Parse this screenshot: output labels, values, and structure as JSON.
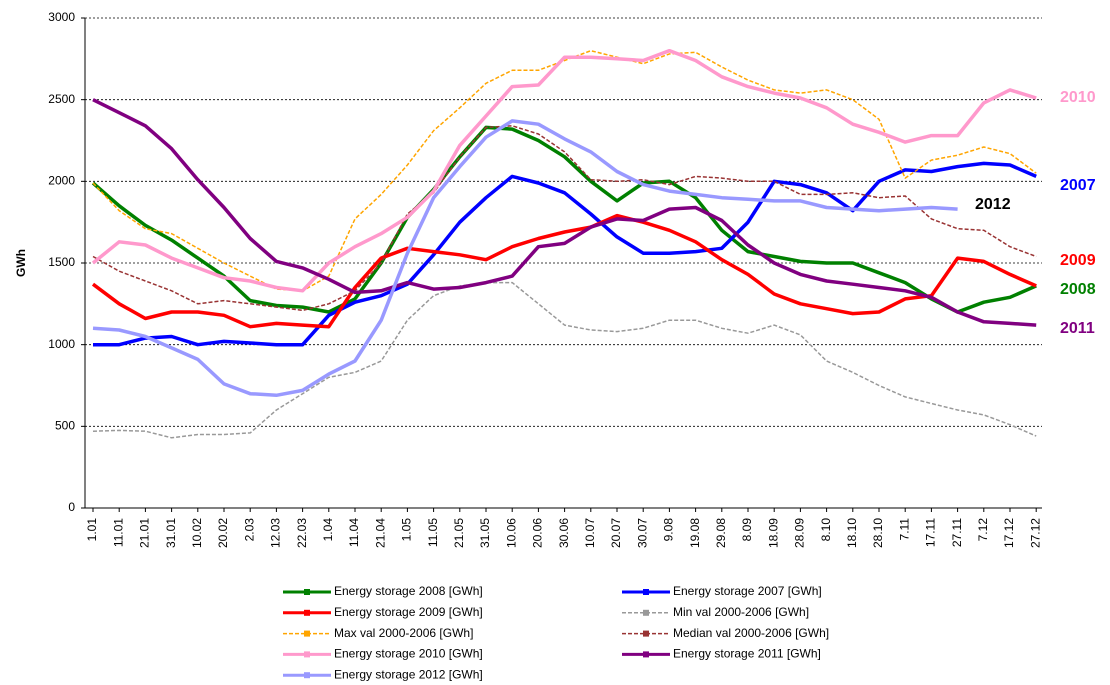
{
  "chart_data": {
    "type": "line",
    "y_label": "GWh",
    "categories": [
      "1.01",
      "11.01",
      "21.01",
      "31.01",
      "10.02",
      "20.02",
      "2.03",
      "12.03",
      "22.03",
      "1.04",
      "11.04",
      "21.04",
      "1.05",
      "11.05",
      "21.05",
      "31.05",
      "10.06",
      "20.06",
      "30.06",
      "10.07",
      "20.07",
      "30.07",
      "9.08",
      "19.08",
      "29.08",
      "8.09",
      "18.09",
      "28.09",
      "8.10",
      "18.10",
      "28.10",
      "7.11",
      "17.11",
      "27.11",
      "7.12",
      "17.12",
      "27.12"
    ],
    "ylim": [
      0,
      3000
    ],
    "yticks": [
      0,
      500,
      1000,
      1500,
      2000,
      2500,
      3000
    ],
    "grid": true,
    "series": [
      {
        "name": "Energy storage 2008 [GWh]",
        "color": "#008000",
        "style": "solid",
        "values": [
          1990,
          1850,
          1730,
          1640,
          1530,
          1420,
          1270,
          1240,
          1230,
          1200,
          1280,
          1500,
          1780,
          1950,
          2150,
          2330,
          2320,
          2250,
          2150,
          2000,
          1880,
          1990,
          2000,
          1900,
          1700,
          1570,
          1540,
          1510,
          1500,
          1500,
          1440,
          1380,
          1280,
          1200,
          1260,
          1290,
          1360
        ]
      },
      {
        "name": "Energy storage 2007 [GWh]",
        "color": "#0000ff",
        "style": "solid",
        "values": [
          1000,
          1000,
          1040,
          1050,
          1000,
          1020,
          1010,
          1000,
          1000,
          1180,
          1260,
          1300,
          1370,
          1550,
          1750,
          1900,
          2030,
          1990,
          1930,
          1800,
          1660,
          1560,
          1560,
          1570,
          1590,
          1750,
          2000,
          1980,
          1930,
          1820,
          2000,
          2070,
          2060,
          2090,
          2110,
          2100,
          2030
        ]
      },
      {
        "name": "Energy storage 2009 [GWh]",
        "color": "#ff0000",
        "style": "solid",
        "values": [
          1370,
          1250,
          1160,
          1200,
          1200,
          1180,
          1110,
          1130,
          1120,
          1110,
          1350,
          1530,
          1590,
          1570,
          1550,
          1520,
          1600,
          1650,
          1690,
          1720,
          1790,
          1750,
          1700,
          1630,
          1520,
          1430,
          1310,
          1250,
          1220,
          1190,
          1200,
          1280,
          1300,
          1530,
          1510,
          1430,
          1360
        ]
      },
      {
        "name": "Min val 2000-2006 [GWh]",
        "color": "#999999",
        "style": "dashed",
        "values": [
          470,
          475,
          470,
          430,
          450,
          450,
          460,
          600,
          700,
          800,
          830,
          900,
          1150,
          1300,
          1360,
          1380,
          1380,
          1250,
          1120,
          1090,
          1080,
          1100,
          1150,
          1150,
          1100,
          1070,
          1120,
          1060,
          900,
          830,
          750,
          680,
          640,
          600,
          570,
          510,
          440
        ]
      },
      {
        "name": "Max val 2000-2006 [GWh]",
        "color": "#ffa500",
        "style": "dashed",
        "values": [
          1990,
          1820,
          1710,
          1680,
          1590,
          1500,
          1420,
          1340,
          1330,
          1420,
          1770,
          1920,
          2100,
          2310,
          2450,
          2600,
          2680,
          2680,
          2740,
          2800,
          2760,
          2720,
          2780,
          2790,
          2700,
          2620,
          2560,
          2540,
          2560,
          2500,
          2380,
          2020,
          2130,
          2160,
          2210,
          2170,
          2050
        ]
      },
      {
        "name": "Median val 2000-2006 [GWh]",
        "color": "#993333",
        "style": "dashed",
        "values": [
          1540,
          1450,
          1390,
          1330,
          1250,
          1270,
          1250,
          1230,
          1210,
          1250,
          1330,
          1500,
          1800,
          1930,
          2150,
          2330,
          2340,
          2290,
          2180,
          2010,
          2000,
          2010,
          1980,
          2030,
          2020,
          2000,
          2000,
          1920,
          1920,
          1930,
          1900,
          1910,
          1770,
          1710,
          1700,
          1600,
          1540
        ]
      },
      {
        "name": "Energy storage 2010 [GWh]",
        "color": "#ff99cc",
        "style": "solid",
        "values": [
          1500,
          1630,
          1610,
          1530,
          1470,
          1410,
          1390,
          1350,
          1330,
          1500,
          1600,
          1680,
          1780,
          1940,
          2220,
          2400,
          2580,
          2590,
          2760,
          2760,
          2750,
          2740,
          2800,
          2740,
          2640,
          2580,
          2540,
          2510,
          2450,
          2350,
          2300,
          2240,
          2280,
          2280,
          2480,
          2560,
          2510
        ]
      },
      {
        "name": "Energy storage 2011 [GWh]",
        "color": "#800080",
        "style": "solid",
        "values": [
          2500,
          2420,
          2340,
          2200,
          2010,
          1840,
          1650,
          1510,
          1470,
          1400,
          1320,
          1330,
          1380,
          1340,
          1350,
          1380,
          1420,
          1600,
          1620,
          1720,
          1770,
          1760,
          1830,
          1840,
          1760,
          1610,
          1500,
          1430,
          1390,
          1370,
          1350,
          1330,
          1290,
          1200,
          1140,
          1130,
          1120
        ]
      },
      {
        "name": "Energy storage 2012 [GWh]",
        "color": "#9999ff",
        "style": "solid",
        "values": [
          1100,
          1090,
          1050,
          980,
          910,
          760,
          700,
          690,
          720,
          820,
          900,
          1150,
          1560,
          1900,
          2090,
          2270,
          2370,
          2350,
          2260,
          2180,
          2060,
          1980,
          1940,
          1920,
          1900,
          1890,
          1880,
          1880,
          1840,
          1830,
          1820,
          1830,
          1840,
          1830,
          null,
          null,
          null
        ]
      }
    ],
    "annotations": [
      {
        "text": "2010",
        "color": "#ff99cc"
      },
      {
        "text": "2007",
        "color": "#0000ff"
      },
      {
        "text": "2012",
        "color": "#000000"
      },
      {
        "text": "2009",
        "color": "#ff0000"
      },
      {
        "text": "2008",
        "color": "#008000"
      },
      {
        "text": "2011",
        "color": "#800080"
      }
    ]
  }
}
